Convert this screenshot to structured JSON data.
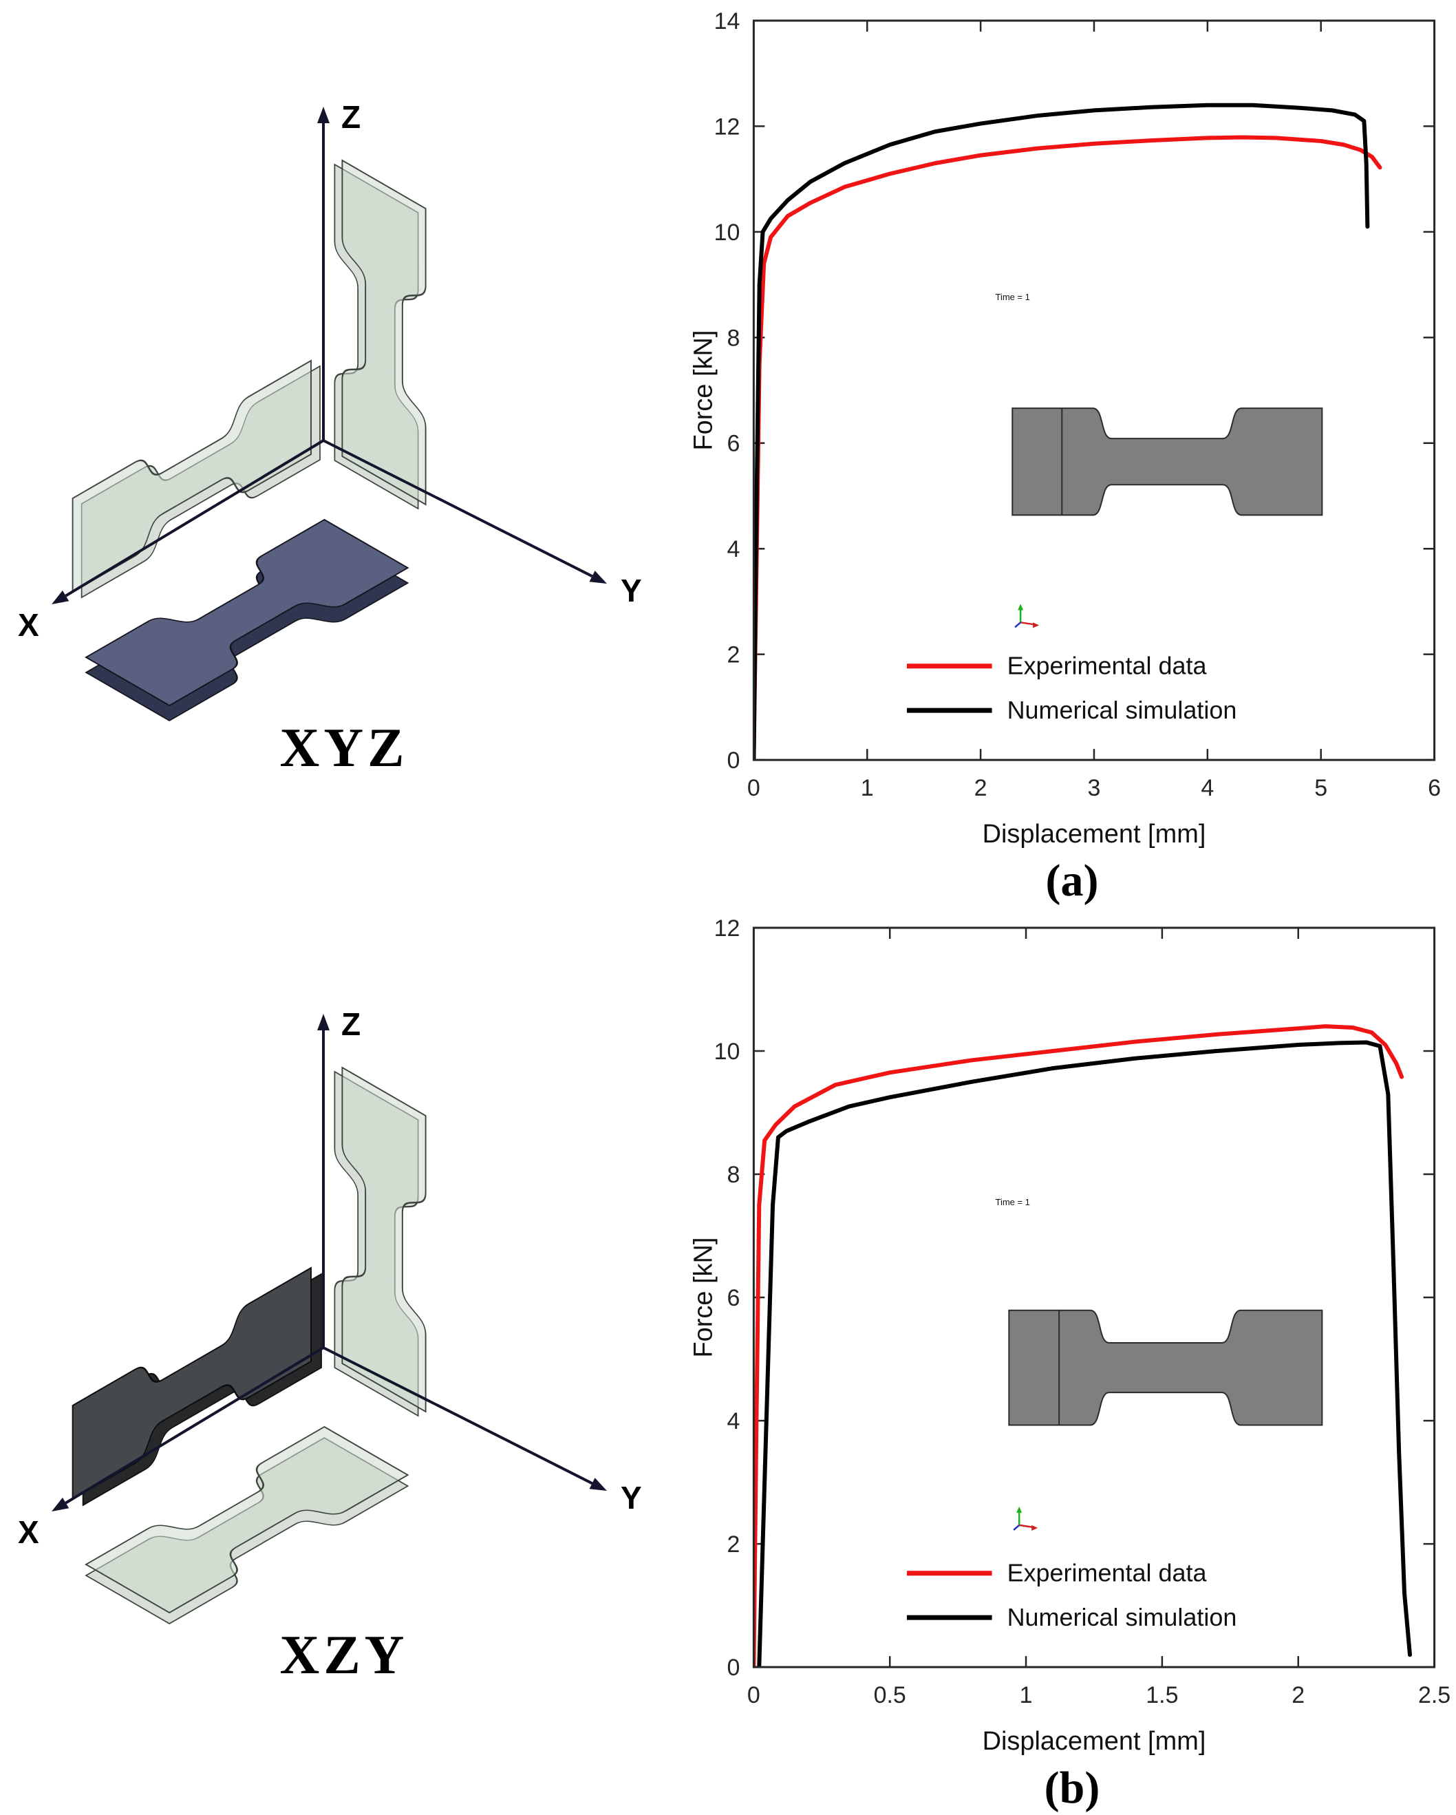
{
  "panels": [
    {
      "caption": "(a)",
      "diagram": {
        "axis_labels": {
          "x": "X",
          "y": "Y",
          "z": "Z"
        },
        "orientation_label": "XYZ",
        "dark_specimen": "flat"
      }
    },
    {
      "caption": "(b)",
      "diagram": {
        "axis_labels": {
          "x": "X",
          "y": "Y",
          "z": "Z"
        },
        "orientation_label": "XZY",
        "dark_specimen": "left"
      }
    }
  ],
  "chart_data": [
    {
      "type": "line",
      "title": "",
      "xlabel": "Displacement [mm]",
      "ylabel": "Force [kN]",
      "xlim": [
        0,
        6
      ],
      "ylim": [
        0,
        14
      ],
      "xticks": [
        0,
        1,
        2,
        3,
        4,
        5,
        6
      ],
      "yticks": [
        0,
        2,
        4,
        6,
        8,
        10,
        12,
        14
      ],
      "grid": false,
      "legend_position": "inside lower center",
      "inset": {
        "x": 0.38,
        "y": 0.522,
        "w": 0.455,
        "h": 0.149,
        "time_label": "Time = 1",
        "time_x": 0.355,
        "time_y": 0.378,
        "triad_x": 0.392,
        "triad_y": 0.814
      },
      "series": [
        {
          "name": "Experimental data",
          "color": "#f01414",
          "points": [
            [
              0,
              0
            ],
            [
              0.02,
              3
            ],
            [
              0.05,
              7.5
            ],
            [
              0.09,
              9.4
            ],
            [
              0.15,
              9.9
            ],
            [
              0.3,
              10.3
            ],
            [
              0.5,
              10.55
            ],
            [
              0.8,
              10.85
            ],
            [
              1.2,
              11.1
            ],
            [
              1.6,
              11.3
            ],
            [
              2.0,
              11.45
            ],
            [
              2.5,
              11.58
            ],
            [
              3.0,
              11.67
            ],
            [
              3.5,
              11.73
            ],
            [
              4.0,
              11.78
            ],
            [
              4.3,
              11.79
            ],
            [
              4.6,
              11.78
            ],
            [
              5.0,
              11.72
            ],
            [
              5.2,
              11.65
            ],
            [
              5.35,
              11.55
            ],
            [
              5.45,
              11.42
            ],
            [
              5.52,
              11.22
            ]
          ]
        },
        {
          "name": "Numerical simulation",
          "color": "#000000",
          "points": [
            [
              0,
              0
            ],
            [
              0.02,
              4
            ],
            [
              0.05,
              9
            ],
            [
              0.08,
              10.0
            ],
            [
              0.15,
              10.25
            ],
            [
              0.3,
              10.6
            ],
            [
              0.5,
              10.95
            ],
            [
              0.8,
              11.3
            ],
            [
              1.2,
              11.65
            ],
            [
              1.6,
              11.9
            ],
            [
              2.0,
              12.05
            ],
            [
              2.5,
              12.2
            ],
            [
              3.0,
              12.3
            ],
            [
              3.5,
              12.36
            ],
            [
              4.0,
              12.4
            ],
            [
              4.4,
              12.4
            ],
            [
              4.8,
              12.35
            ],
            [
              5.1,
              12.3
            ],
            [
              5.3,
              12.22
            ],
            [
              5.38,
              12.1
            ],
            [
              5.4,
              11.3
            ],
            [
              5.41,
              10.1
            ]
          ]
        }
      ]
    },
    {
      "type": "line",
      "title": "",
      "xlabel": "Displacement [mm]",
      "ylabel": "Force [kN]",
      "xlim": [
        0,
        2.5
      ],
      "ylim": [
        0,
        12
      ],
      "xticks": [
        0,
        0.5,
        1,
        1.5,
        2,
        2.5
      ],
      "yticks": [
        0,
        2,
        4,
        6,
        8,
        10,
        12
      ],
      "grid": false,
      "legend_position": "inside lower center",
      "inset": {
        "x": 0.375,
        "y": 0.515,
        "w": 0.46,
        "h": 0.16,
        "time_label": "Time = 1",
        "time_x": 0.355,
        "time_y": 0.375,
        "triad_x": 0.39,
        "triad_y": 0.808
      },
      "series": [
        {
          "name": "Experimental data",
          "color": "#f01414",
          "points": [
            [
              0,
              0
            ],
            [
              0.01,
              4
            ],
            [
              0.02,
              7.5
            ],
            [
              0.04,
              8.55
            ],
            [
              0.08,
              8.8
            ],
            [
              0.15,
              9.1
            ],
            [
              0.3,
              9.45
            ],
            [
              0.5,
              9.65
            ],
            [
              0.8,
              9.85
            ],
            [
              1.1,
              10.0
            ],
            [
              1.4,
              10.15
            ],
            [
              1.7,
              10.27
            ],
            [
              1.95,
              10.35
            ],
            [
              2.1,
              10.4
            ],
            [
              2.2,
              10.38
            ],
            [
              2.27,
              10.3
            ],
            [
              2.32,
              10.1
            ],
            [
              2.36,
              9.8
            ],
            [
              2.38,
              9.58
            ]
          ]
        },
        {
          "name": "Numerical simulation",
          "color": "#000000",
          "points": [
            [
              0.02,
              0
            ],
            [
              0.04,
              3
            ],
            [
              0.07,
              7.5
            ],
            [
              0.09,
              8.6
            ],
            [
              0.12,
              8.7
            ],
            [
              0.2,
              8.85
            ],
            [
              0.35,
              9.1
            ],
            [
              0.5,
              9.25
            ],
            [
              0.8,
              9.5
            ],
            [
              1.1,
              9.72
            ],
            [
              1.4,
              9.88
            ],
            [
              1.7,
              10.0
            ],
            [
              2.0,
              10.1
            ],
            [
              2.15,
              10.13
            ],
            [
              2.25,
              10.14
            ],
            [
              2.3,
              10.08
            ],
            [
              2.33,
              9.3
            ],
            [
              2.35,
              6.5
            ],
            [
              2.37,
              3.5
            ],
            [
              2.39,
              1.2
            ],
            [
              2.41,
              0.2
            ]
          ]
        }
      ]
    }
  ]
}
